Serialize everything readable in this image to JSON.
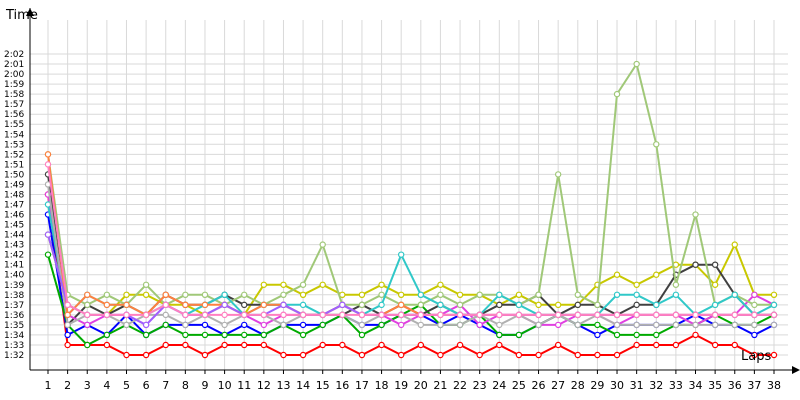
{
  "chart_data": {
    "type": "line",
    "ylabel": "Time",
    "xlabel": "Laps",
    "x": [
      1,
      2,
      3,
      4,
      5,
      6,
      7,
      8,
      9,
      10,
      11,
      12,
      13,
      14,
      15,
      16,
      17,
      18,
      19,
      20,
      21,
      22,
      23,
      24,
      25,
      26,
      27,
      28,
      29,
      30,
      31,
      32,
      33,
      34,
      35,
      36,
      37,
      38
    ],
    "xlim": [
      1,
      38
    ],
    "ylim_seconds": [
      91,
      125.5
    ],
    "y_tick_labels": [
      "1:32",
      "1:33",
      "1:34",
      "1:35",
      "1:36",
      "1:37",
      "1:38",
      "1:39",
      "1:40",
      "1:41",
      "1:42",
      "1:43",
      "1:44",
      "1:45",
      "1:46",
      "1:47",
      "1:48",
      "1:49",
      "1:50",
      "1:51",
      "1:52",
      "1:53",
      "1:54",
      "1:55",
      "1:56",
      "1:57",
      "1:58",
      "1:59",
      "2:00",
      "2:01",
      "2:02"
    ],
    "grid": true,
    "series": [
      {
        "color": "#ff0000",
        "values": [
          108,
          93,
          93,
          93,
          92,
          92,
          93,
          93,
          92,
          93,
          93,
          93,
          92,
          92,
          93,
          93,
          92,
          93,
          92,
          93,
          92,
          93,
          92,
          93,
          92,
          92,
          93,
          92,
          92,
          92,
          93,
          93,
          93,
          94,
          93,
          93,
          92,
          92
        ]
      },
      {
        "color": "#0000ff",
        "values": [
          106,
          94,
          95,
          94,
          96,
          94,
          95,
          95,
          95,
          94,
          95,
          94,
          95,
          95,
          95,
          96,
          95,
          95,
          96,
          96,
          95,
          96,
          95,
          94,
          94,
          95,
          96,
          95,
          94,
          95,
          95,
          95,
          95,
          96,
          95,
          95,
          94,
          95
        ]
      },
      {
        "color": "#00aa00",
        "values": [
          102,
          95,
          93,
          94,
          95,
          94,
          95,
          94,
          94,
          94,
          94,
          94,
          95,
          94,
          95,
          96,
          94,
          95,
          96,
          97,
          95,
          95,
          96,
          94,
          94,
          95,
          96,
          95,
          95,
          94,
          94,
          94,
          95,
          95,
          96,
          95,
          95,
          96
        ]
      },
      {
        "color": "#c8c800",
        "values": [
          104,
          97,
          96,
          96,
          98,
          98,
          97,
          97,
          96,
          97,
          96,
          99,
          99,
          98,
          99,
          98,
          98,
          99,
          98,
          98,
          99,
          98,
          98,
          97,
          98,
          97,
          97,
          97,
          99,
          100,
          99,
          100,
          101,
          101,
          99,
          103,
          98,
          98
        ]
      },
      {
        "color": "#404040",
        "values": [
          110,
          95,
          97,
          96,
          97,
          96,
          98,
          97,
          97,
          98,
          97,
          97,
          97,
          96,
          96,
          96,
          97,
          96,
          97,
          96,
          97,
          96,
          96,
          97,
          97,
          98,
          96,
          97,
          97,
          96,
          97,
          97,
          100,
          101,
          101,
          98,
          96,
          96
        ]
      },
      {
        "color": "#e040e0",
        "values": [
          108,
          96,
          95,
          96,
          96,
          95,
          97,
          96,
          96,
          97,
          96,
          95,
          96,
          96,
          96,
          97,
          96,
          96,
          95,
          96,
          96,
          97,
          95,
          96,
          96,
          95,
          95,
          96,
          96,
          95,
          96,
          96,
          96,
          95,
          96,
          96,
          98,
          97
        ]
      },
      {
        "color": "#a0c878",
        "values": [
          112,
          98,
          97,
          98,
          97,
          99,
          97,
          98,
          98,
          97,
          98,
          97,
          98,
          99,
          103,
          97,
          97,
          98,
          97,
          97,
          98,
          97,
          98,
          98,
          97,
          98,
          110,
          98,
          97,
          118,
          121,
          113,
          99,
          106,
          97,
          98,
          97,
          97
        ]
      },
      {
        "color": "#30c8c8",
        "values": [
          107,
          96,
          98,
          97,
          97,
          96,
          97,
          96,
          97,
          98,
          96,
          97,
          97,
          97,
          96,
          97,
          96,
          97,
          102,
          98,
          97,
          96,
          96,
          98,
          97,
          96,
          96,
          96,
          96,
          98,
          98,
          97,
          98,
          96,
          97,
          98,
          96,
          97
        ]
      },
      {
        "color": "#b0b0b0",
        "values": [
          109,
          95,
          96,
          96,
          95,
          96,
          96,
          95,
          96,
          95,
          96,
          96,
          95,
          96,
          96,
          96,
          95,
          96,
          96,
          95,
          95,
          95,
          96,
          95,
          96,
          95,
          96,
          95,
          96,
          95,
          95,
          95,
          95,
          95,
          95,
          95,
          95,
          95
        ]
      },
      {
        "color": "#ff8040",
        "values": [
          112,
          96,
          98,
          97,
          97,
          96,
          98,
          97,
          97,
          97,
          96,
          97,
          97,
          96,
          96,
          97,
          96,
          96,
          97,
          96,
          96,
          96,
          96,
          96,
          96,
          96,
          96,
          96,
          96,
          96,
          96,
          96,
          96,
          96,
          96,
          96,
          96,
          96
        ]
      },
      {
        "color": "#a060ff",
        "values": [
          104,
          97,
          96,
          96,
          96,
          95,
          97,
          96,
          96,
          97,
          96,
          96,
          97,
          96,
          96,
          97,
          96,
          96,
          96,
          96,
          96,
          96,
          96,
          96,
          96,
          96,
          96,
          96,
          96,
          96,
          96,
          96,
          96,
          96,
          96,
          96,
          96,
          96
        ]
      },
      {
        "color": "#ff80c0",
        "values": [
          111,
          97,
          96,
          96,
          96,
          96,
          97,
          96,
          96,
          96,
          96,
          96,
          96,
          96,
          96,
          96,
          96,
          96,
          96,
          96,
          96,
          96,
          96,
          96,
          96,
          96,
          96,
          96,
          96,
          96,
          96,
          96,
          96,
          96,
          96,
          96,
          96,
          96
        ]
      }
    ]
  }
}
